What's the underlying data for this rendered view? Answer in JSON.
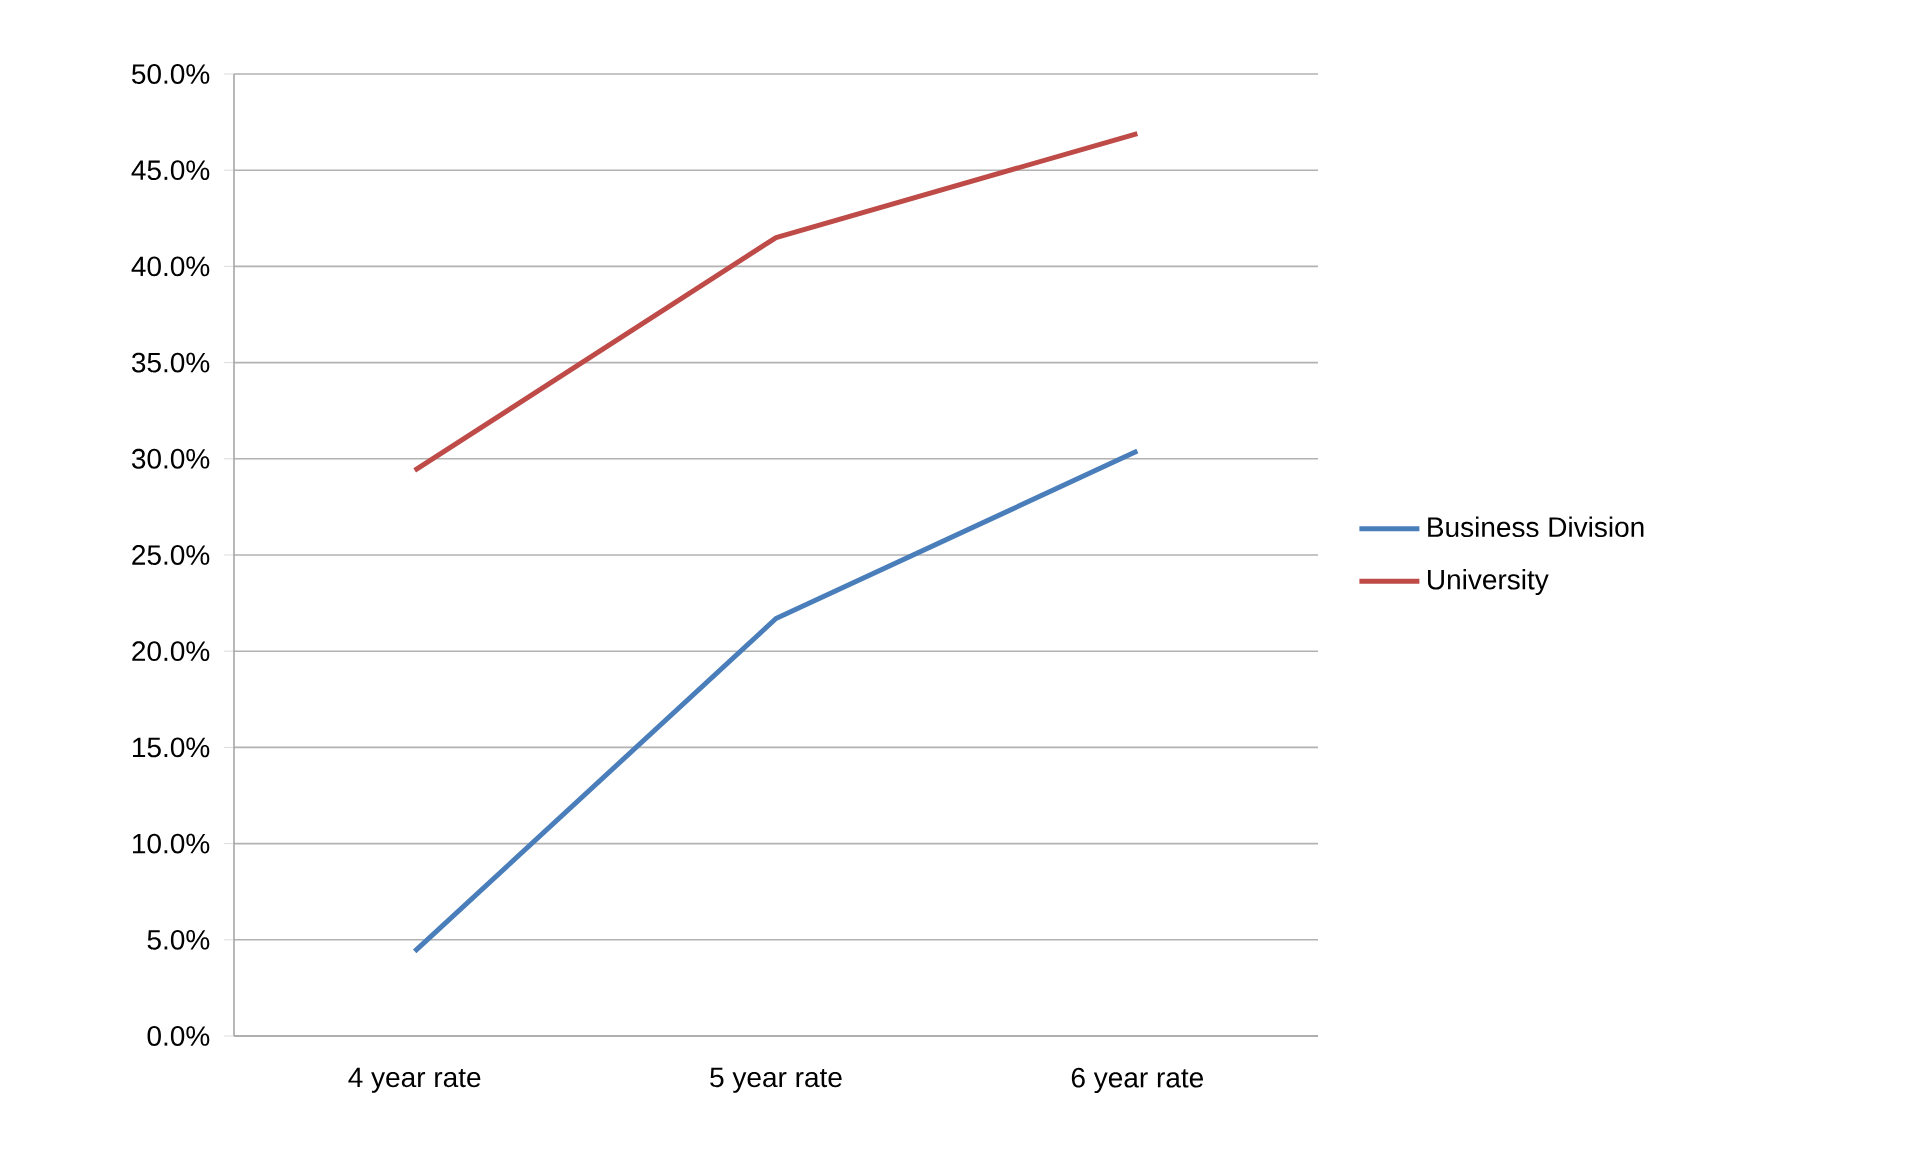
{
  "chart_data": {
    "type": "line",
    "categories": [
      "4 year rate",
      "5 year rate",
      "6 year rate"
    ],
    "series": [
      {
        "name": "Business Division",
        "color": "#4a7ebb",
        "values": [
          4.4,
          21.7,
          30.4
        ]
      },
      {
        "name": "University",
        "color": "#be4b48",
        "values": [
          29.4,
          41.5,
          46.9
        ]
      }
    ],
    "ylim": [
      0,
      50
    ],
    "yticks": [
      {
        "value": 0,
        "label": "0.0%"
      },
      {
        "value": 5,
        "label": "5.0%"
      },
      {
        "value": 10,
        "label": "10.0%"
      },
      {
        "value": 15,
        "label": "15.0%"
      },
      {
        "value": 20,
        "label": "20.0%"
      },
      {
        "value": 25,
        "label": "25.0%"
      },
      {
        "value": 30,
        "label": "30.0%"
      },
      {
        "value": 35,
        "label": "35.0%"
      },
      {
        "value": 40,
        "label": "40.0%"
      },
      {
        "value": 45,
        "label": "45.0%"
      },
      {
        "value": 50,
        "label": "50.0%"
      }
    ],
    "grid": "y",
    "legend": "right",
    "marker": "none",
    "line_style": "solid"
  }
}
